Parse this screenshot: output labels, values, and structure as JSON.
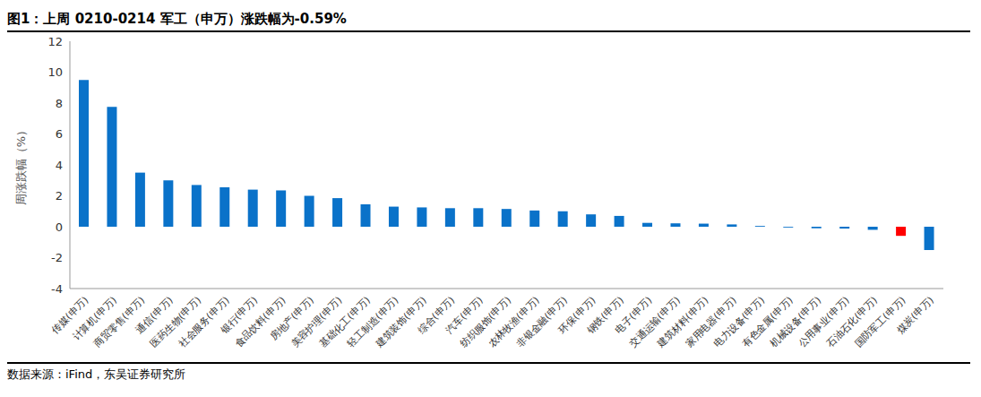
{
  "chart_data": {
    "type": "bar",
    "title": "图1：上周 0210-0214 军工（申万）涨跌幅为-0.59%",
    "subtitle": "数据来源：iFind，东吴证券研究所",
    "y_label": "周涨跌幅（%）",
    "categories": [
      "传媒(申万)",
      "计算机(申万)",
      "商贸零售(申万)",
      "通信(申万)",
      "医药生物(申万)",
      "社会服务(申万)",
      "银行(申万)",
      "食品饮料(申万)",
      "房地产(申万)",
      "美容护理(申万)",
      "基础化工(申万)",
      "轻工制造(申万)",
      "建筑装饰(申万)",
      "综合(申万)",
      "汽车(申万)",
      "纺织服饰(申万)",
      "农林牧渔(申万)",
      "非银金融(申万)",
      "环保(申万)",
      "钢铁(申万)",
      "电子(申万)",
      "交通运输(申万)",
      "建筑材料(申万)",
      "家用电器(申万)",
      "电力设备(申万)",
      "有色金属(申万)",
      "机械设备(申万)",
      "公用事业(申万)",
      "石油石化(申万)",
      "国防军工(申万)",
      "煤炭(申万)"
    ],
    "values": [
      9.5,
      7.75,
      3.5,
      3.0,
      2.7,
      2.55,
      2.4,
      2.35,
      2.0,
      1.85,
      1.45,
      1.3,
      1.25,
      1.2,
      1.2,
      1.15,
      1.05,
      1.0,
      0.8,
      0.7,
      0.25,
      0.22,
      0.2,
      0.15,
      0.05,
      -0.05,
      -0.1,
      -0.12,
      -0.2,
      -0.59,
      -1.5
    ],
    "colors": [
      "#0a72c9",
      "#0a72c9",
      "#0a72c9",
      "#0a72c9",
      "#0a72c9",
      "#0a72c9",
      "#0a72c9",
      "#0a72c9",
      "#0a72c9",
      "#0a72c9",
      "#0a72c9",
      "#0a72c9",
      "#0a72c9",
      "#0a72c9",
      "#0a72c9",
      "#0a72c9",
      "#0a72c9",
      "#0a72c9",
      "#0a72c9",
      "#0a72c9",
      "#0a72c9",
      "#0a72c9",
      "#0a72c9",
      "#0a72c9",
      "#0a72c9",
      "#0a72c9",
      "#0a72c9",
      "#0a72c9",
      "#0a72c9",
      "#ff0000",
      "#0a72c9"
    ],
    "ylim": [
      -4,
      12
    ],
    "yticks": [
      -4,
      -2,
      0,
      2,
      4,
      6,
      8,
      10,
      12
    ],
    "grid": false
  }
}
